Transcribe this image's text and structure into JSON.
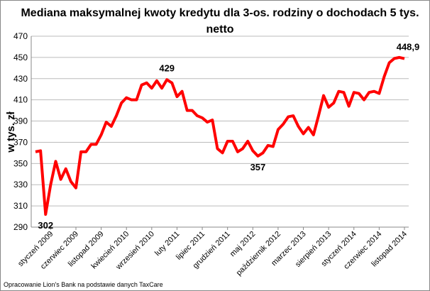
{
  "chart_data": {
    "type": "line",
    "title": [
      "Mediana maksymalnej kwoty kredytu dla 3-os. rodziny o dochodach 5 tys.",
      "netto"
    ],
    "y_label": "w tys. zł",
    "source": "Opracowanie Lion's Bank na podstawie danych TaxCare",
    "categories": [
      null,
      null,
      null,
      "styczeń 2009",
      null,
      null,
      null,
      null,
      "czerwiec 2009",
      null,
      null,
      null,
      null,
      "listopad 2009",
      null,
      null,
      null,
      null,
      "kwiecień 2010",
      null,
      null,
      null,
      null,
      "wrzesień 2010",
      null,
      null,
      null,
      null,
      "luty 2011",
      null,
      null,
      null,
      null,
      "lipiec 2011",
      null,
      null,
      null,
      null,
      "grudzień 2011",
      null,
      null,
      null,
      null,
      "maj 2012",
      null,
      null,
      null,
      null,
      "październik 2012",
      null,
      null,
      null,
      null,
      "marzec 2013",
      null,
      null,
      null,
      null,
      "sierpień 2013",
      null,
      null,
      null,
      null,
      "styczeń 2014",
      null,
      null,
      null,
      null,
      "czerwiec 2014",
      null,
      null,
      null,
      null,
      "listopad 2014"
    ],
    "series": [
      {
        "name": null,
        "color": "#ff0000",
        "values": [
          361,
          362,
          302,
          330,
          352,
          335,
          345,
          333,
          327,
          361,
          361,
          368,
          368,
          377,
          389,
          385,
          395,
          407,
          412,
          410,
          410,
          424,
          426,
          421,
          428,
          421,
          429,
          426,
          413,
          418,
          400,
          400,
          395,
          393,
          389,
          391,
          364,
          360,
          371,
          371,
          361,
          364,
          371,
          362,
          357,
          360,
          367,
          366,
          382,
          387,
          394,
          395,
          385,
          378,
          384,
          377,
          395,
          414,
          403,
          407,
          418,
          417,
          404,
          417,
          416,
          410,
          417,
          418,
          416,
          432,
          445,
          449,
          450,
          448.9
        ],
        "value_labels": [
          null,
          null,
          "302",
          null,
          null,
          null,
          null,
          null,
          null,
          null,
          null,
          null,
          null,
          null,
          null,
          null,
          null,
          null,
          null,
          null,
          null,
          null,
          null,
          null,
          null,
          null,
          "429",
          null,
          null,
          null,
          null,
          null,
          null,
          null,
          null,
          null,
          null,
          null,
          null,
          null,
          null,
          null,
          null,
          null,
          "357",
          null,
          null,
          null,
          null,
          null,
          null,
          null,
          null,
          null,
          null,
          null,
          null,
          null,
          null,
          null,
          null,
          null,
          null,
          null,
          null,
          null,
          null,
          null,
          null,
          null,
          null,
          null,
          null,
          "448,9"
        ]
      }
    ],
    "ylim": [
      290,
      470
    ],
    "yticks": [
      290,
      310,
      330,
      350,
      370,
      390,
      410,
      430,
      450,
      470
    ],
    "grid": true
  }
}
